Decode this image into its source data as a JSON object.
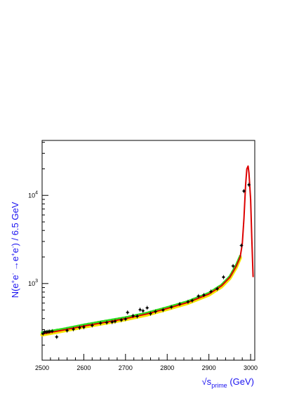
{
  "chart_data": {
    "type": "line",
    "title": "",
    "xlabel_main": "√s",
    "xlabel_sub": "prime",
    "xlabel_unit": " (GeV)",
    "ylabel_main": "N(e",
    "ylabel_parts": [
      "+",
      "e",
      "-",
      " →e",
      "+",
      "e",
      "-",
      ") / 6.5 GeV"
    ],
    "xlim": [
      2500,
      3010
    ],
    "ylim": [
      135,
      42000
    ],
    "y_scale": "log",
    "x_ticks": [
      "2500",
      "2600",
      "2700",
      "2800",
      "2900",
      "3000"
    ],
    "y_ticks": [
      {
        "base": "10",
        "exp": "3",
        "value": 1000
      },
      {
        "base": "10",
        "exp": "4",
        "value": 10000
      }
    ],
    "grid": false,
    "colors": {
      "axis_title": "#1a12f0",
      "yellow": "#f5e600",
      "green": "#2ddc1e",
      "red": "#dd0000",
      "black": "#000000"
    },
    "series": [
      {
        "color": "yellow",
        "points": [
          [
            2500,
            262
          ],
          [
            2550,
            290
          ],
          [
            2600,
            322
          ],
          [
            2650,
            355
          ],
          [
            2700,
            392
          ],
          [
            2750,
            440
          ],
          [
            2800,
            512
          ],
          [
            2850,
            600
          ],
          [
            2900,
            745
          ],
          [
            2930,
            920
          ],
          [
            2950,
            1150
          ],
          [
            2965,
            1520
          ],
          [
            2975,
            1960
          ]
        ]
      },
      {
        "color": "green",
        "points": [
          [
            2500,
            278
          ],
          [
            2550,
            305
          ],
          [
            2600,
            340
          ],
          [
            2650,
            375
          ],
          [
            2700,
            412
          ],
          [
            2750,
            462
          ],
          [
            2800,
            536
          ],
          [
            2850,
            628
          ],
          [
            2900,
            780
          ],
          [
            2930,
            960
          ],
          [
            2950,
            1200
          ],
          [
            2965,
            1600
          ],
          [
            2975,
            2050
          ]
        ]
      },
      {
        "color": "red",
        "points": [
          [
            2500,
            268
          ],
          [
            2550,
            296
          ],
          [
            2600,
            330
          ],
          [
            2650,
            362
          ],
          [
            2700,
            400
          ],
          [
            2750,
            450
          ],
          [
            2800,
            522
          ],
          [
            2850,
            612
          ],
          [
            2900,
            760
          ],
          [
            2930,
            940
          ],
          [
            2950,
            1175
          ],
          [
            2965,
            1560
          ],
          [
            2975,
            2000
          ],
          [
            2980,
            2800
          ],
          [
            2984,
            5500
          ],
          [
            2988,
            13000
          ],
          [
            2991,
            20000
          ],
          [
            2994,
            21500
          ],
          [
            2996,
            18000
          ],
          [
            3000,
            9000
          ],
          [
            3003,
            3200
          ],
          [
            3006,
            1200
          ]
        ]
      }
    ],
    "points": [
      [
        2502,
        270
      ],
      [
        2506,
        283
      ],
      [
        2510,
        282
      ],
      [
        2514,
        284
      ],
      [
        2518,
        286
      ],
      [
        2524,
        288
      ],
      [
        2535,
        248
      ],
      [
        2560,
        293
      ],
      [
        2575,
        303
      ],
      [
        2590,
        315
      ],
      [
        2600,
        320
      ],
      [
        2620,
        335
      ],
      [
        2640,
        355
      ],
      [
        2655,
        360
      ],
      [
        2668,
        365
      ],
      [
        2675,
        372
      ],
      [
        2690,
        385
      ],
      [
        2700,
        395
      ],
      [
        2705,
        470
      ],
      [
        2718,
        430
      ],
      [
        2728,
        425
      ],
      [
        2735,
        505
      ],
      [
        2742,
        490
      ],
      [
        2752,
        530
      ],
      [
        2760,
        455
      ],
      [
        2772,
        480
      ],
      [
        2790,
        500
      ],
      [
        2810,
        540
      ],
      [
        2830,
        585
      ],
      [
        2850,
        620
      ],
      [
        2860,
        640
      ],
      [
        2875,
        720
      ],
      [
        2888,
        740
      ],
      [
        2905,
        810
      ],
      [
        2920,
        870
      ],
      [
        2935,
        1180
      ],
      [
        2958,
        1580
      ],
      [
        2978,
        2700
      ],
      [
        2984,
        11200
      ],
      [
        2996,
        13200
      ]
    ]
  }
}
